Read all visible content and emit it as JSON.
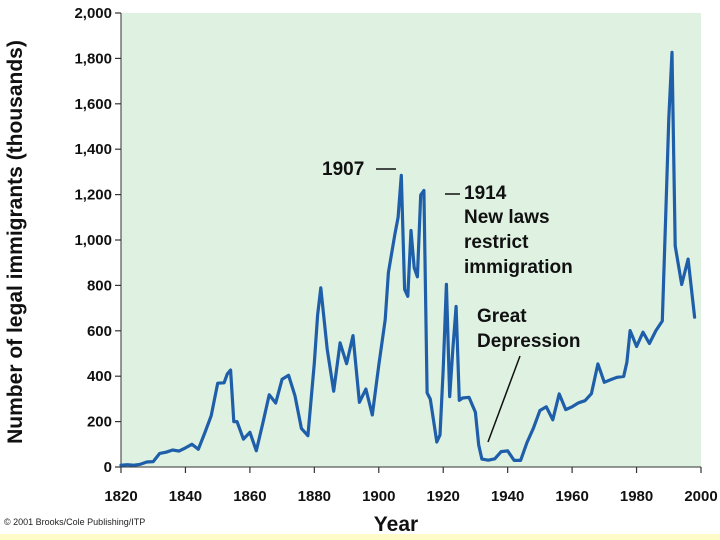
{
  "chart_data": {
    "type": "line",
    "title": "",
    "xlabel": "Year",
    "ylabel": "Number of legal immigrants (thousands)",
    "xlim": [
      1820,
      2000
    ],
    "ylim": [
      0,
      2000
    ],
    "x_ticks": [
      "1820",
      "1840",
      "1860",
      "1880",
      "1900",
      "1920",
      "1940",
      "1960",
      "1980",
      "2000"
    ],
    "y_ticks": [
      "0",
      "200",
      "400",
      "600",
      "800",
      "1,000",
      "1,200",
      "1,400",
      "1,600",
      "1,800",
      "2,000"
    ],
    "grid": false,
    "series_color": "#1f5faa",
    "background_color": "#dff2e2",
    "x": [
      1820,
      1822,
      1824,
      1826,
      1828,
      1830,
      1832,
      1834,
      1836,
      1838,
      1840,
      1842,
      1844,
      1846,
      1848,
      1850,
      1852,
      1853,
      1854,
      1855,
      1856,
      1858,
      1860,
      1862,
      1864,
      1866,
      1868,
      1870,
      1872,
      1874,
      1876,
      1878,
      1880,
      1881,
      1882,
      1884,
      1886,
      1888,
      1890,
      1892,
      1894,
      1896,
      1898,
      1900,
      1902,
      1903,
      1905,
      1906,
      1907,
      1908,
      1909,
      1910,
      1911,
      1912,
      1913,
      1914,
      1915,
      1916,
      1918,
      1919,
      1920,
      1921,
      1922,
      1923,
      1924,
      1925,
      1926,
      1928,
      1930,
      1931,
      1932,
      1934,
      1936,
      1938,
      1940,
      1942,
      1944,
      1946,
      1948,
      1950,
      1952,
      1954,
      1956,
      1958,
      1960,
      1962,
      1964,
      1966,
      1968,
      1970,
      1972,
      1974,
      1976,
      1977,
      1978,
      1980,
      1982,
      1984,
      1986,
      1988,
      1989,
      1990,
      1991,
      1992,
      1994,
      1996,
      1998
    ],
    "y": [
      8,
      10,
      8,
      12,
      22,
      24,
      60,
      65,
      75,
      70,
      84,
      100,
      78,
      150,
      226,
      369,
      371,
      410,
      427,
      200,
      200,
      123,
      153,
      72,
      193,
      318,
      282,
      387,
      404,
      313,
      170,
      138,
      457,
      669,
      789,
      519,
      334,
      547,
      455,
      579,
      285,
      343,
      229,
      449,
      649,
      857,
      1026,
      1100,
      1285,
      783,
      752,
      1042,
      878,
      838,
      1198,
      1218,
      327,
      299,
      110,
      141,
      430,
      805,
      310,
      523,
      707,
      294,
      304,
      307,
      241,
      97,
      35,
      30,
      36,
      68,
      71,
      29,
      29,
      108,
      171,
      249,
      265,
      208,
      322,
      253,
      265,
      283,
      292,
      323,
      454,
      373,
      385,
      395,
      399,
      462,
      601,
      531,
      594,
      544,
      601,
      643,
      1091,
      1536,
      1827,
      974,
      804,
      916,
      660
    ]
  }
}
